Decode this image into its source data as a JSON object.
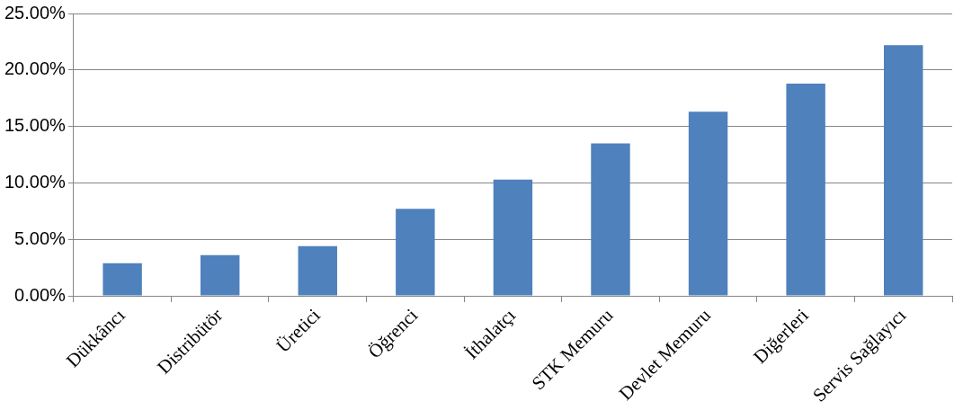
{
  "chart_data": {
    "type": "bar",
    "categories": [
      "Dükkâncı",
      "Distribütör",
      "Üretici",
      "Öğrenci",
      "İthalatçı",
      "STK Memuru",
      "Devlet Memuru",
      "Diğerleri",
      "Servis Sağlayıcı"
    ],
    "values": [
      2.9,
      3.6,
      4.4,
      7.7,
      10.3,
      13.5,
      16.3,
      18.8,
      22.2
    ],
    "color": "#4f81bd",
    "ylim": [
      0,
      25
    ],
    "yticks": [
      {
        "value": 0,
        "label": "0.00%"
      },
      {
        "value": 5,
        "label": "5.00%"
      },
      {
        "value": 10,
        "label": "10.00%"
      },
      {
        "value": 15,
        "label": "15.00%"
      },
      {
        "value": 20,
        "label": "20.00%"
      },
      {
        "value": 25,
        "label": "25.00%"
      }
    ],
    "grid": "y",
    "legend": false
  }
}
